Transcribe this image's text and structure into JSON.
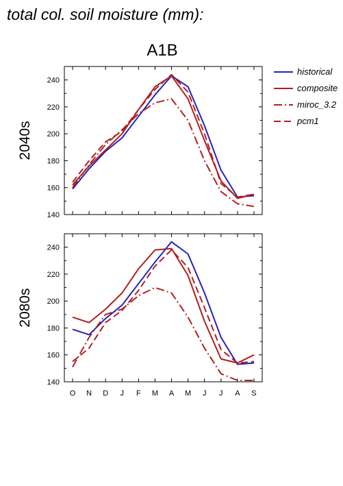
{
  "page_title": "total col. soil moisture (mm):",
  "scenario": "A1B",
  "colors": {
    "historical": "#2222bb",
    "composite": "#b01e1e",
    "miroc_3.2": "#b01e1e",
    "pcm1": "#b01e1e"
  },
  "chart_data": [
    {
      "type": "line",
      "title": "A1B",
      "ylabel": "2040s",
      "xlabel": "",
      "categories": [
        "O",
        "N",
        "D",
        "J",
        "F",
        "M",
        "A",
        "M",
        "J",
        "J",
        "A",
        "S"
      ],
      "ylim": [
        140,
        250
      ],
      "yticks": [
        140,
        160,
        180,
        200,
        220,
        240
      ],
      "legend": "right",
      "series": [
        {
          "name": "historical",
          "dash": "solid",
          "values": [
            159,
            174,
            187,
            197,
            213,
            229,
            243,
            235,
            206,
            173,
            153,
            154
          ]
        },
        {
          "name": "composite",
          "dash": "solid",
          "values": [
            162,
            176,
            188,
            200,
            218,
            235,
            243,
            226,
            195,
            165,
            152,
            155
          ]
        },
        {
          "name": "miroc_3.2",
          "dash": "dashdot",
          "values": [
            160,
            177,
            192,
            203,
            215,
            223,
            226,
            210,
            180,
            157,
            148,
            146
          ]
        },
        {
          "name": "pcm1",
          "dash": "dash",
          "values": [
            164,
            180,
            194,
            202,
            218,
            233,
            244,
            231,
            200,
            163,
            153,
            155
          ]
        }
      ]
    },
    {
      "type": "line",
      "title": "",
      "ylabel": "2080s",
      "xlabel": "",
      "categories": [
        "O",
        "N",
        "D",
        "J",
        "F",
        "M",
        "A",
        "M",
        "J",
        "J",
        "A",
        "S"
      ],
      "ylim": [
        140,
        250
      ],
      "yticks": [
        140,
        160,
        180,
        200,
        220,
        240
      ],
      "series": [
        {
          "name": "historical",
          "dash": "solid",
          "values": [
            179,
            175,
            187,
            197,
            213,
            229,
            244,
            235,
            206,
            173,
            153,
            154
          ]
        },
        {
          "name": "composite",
          "dash": "solid",
          "values": [
            188,
            184,
            194,
            206,
            224,
            238,
            239,
            219,
            185,
            157,
            154,
            160
          ]
        },
        {
          "name": "miroc_3.2",
          "dash": "dashdot",
          "values": [
            151,
            173,
            190,
            194,
            204,
            210,
            206,
            188,
            165,
            146,
            141,
            141
          ]
        },
        {
          "name": "pcm1",
          "dash": "dash",
          "values": [
            155,
            165,
            184,
            193,
            208,
            226,
            238,
            225,
            195,
            164,
            154,
            155
          ]
        }
      ]
    }
  ]
}
